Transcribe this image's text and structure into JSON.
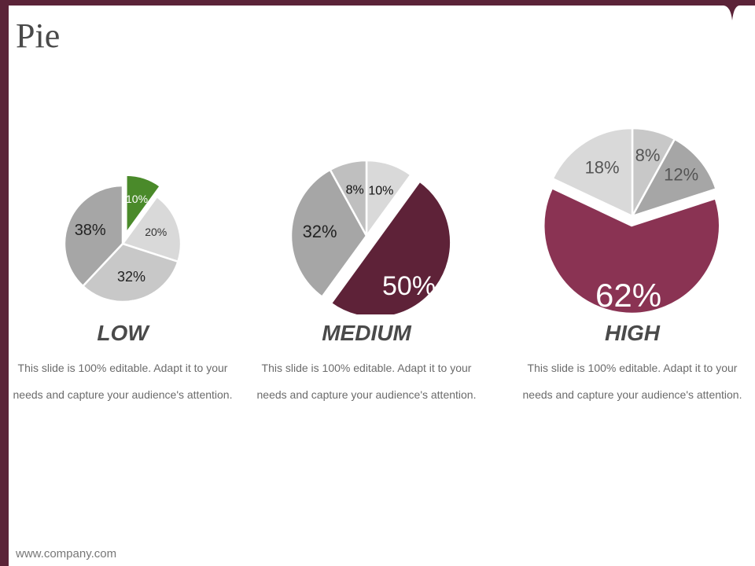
{
  "title": "Pie",
  "footer": "www.company.com",
  "colors": {
    "frame": "#5b2338",
    "green": "#4a8a2a",
    "light_gray": "#d9d9d9",
    "mid_gray": "#bfbfbf",
    "gray": "#a6a6a6",
    "maroon": "#5e2238",
    "magenta": "#8a3353"
  },
  "chart_data": [
    {
      "type": "pie",
      "label": "LOW",
      "description": "This slide is 100% editable. Adapt it to your needs and capture your audience's attention.",
      "slices": [
        {
          "label": "10%",
          "value": 10,
          "color": "#4a8a2a",
          "exploded": true
        },
        {
          "label": "20%",
          "value": 20,
          "color": "#d9d9d9",
          "exploded": false
        },
        {
          "label": "32%",
          "value": 32,
          "color": "#c8c8c8",
          "exploded": false
        },
        {
          "label": "38%",
          "value": 38,
          "color": "#a6a6a6",
          "exploded": false
        }
      ]
    },
    {
      "type": "pie",
      "label": "MEDIUM",
      "description": "This slide is 100% editable. Adapt it to your needs and capture your audience's attention.",
      "slices": [
        {
          "label": "10%",
          "value": 10,
          "color": "#d9d9d9",
          "exploded": false
        },
        {
          "label": "50%",
          "value": 50,
          "color": "#5e2238",
          "exploded": true
        },
        {
          "label": "32%",
          "value": 32,
          "color": "#a6a6a6",
          "exploded": false
        },
        {
          "label": "8%",
          "value": 8,
          "color": "#bfbfbf",
          "exploded": false
        }
      ]
    },
    {
      "type": "pie",
      "label": "HIGH",
      "description": "This slide is 100% editable. Adapt it to your needs and capture your audience's attention.",
      "slices": [
        {
          "label": "8%",
          "value": 8,
          "color": "#c8c8c8",
          "exploded": false
        },
        {
          "label": "12%",
          "value": 12,
          "color": "#a6a6a6",
          "exploded": false
        },
        {
          "label": "62%",
          "value": 62,
          "color": "#8a3353",
          "exploded": true
        },
        {
          "label": "18%",
          "value": 18,
          "color": "#d9d9d9",
          "exploded": false
        }
      ]
    }
  ]
}
